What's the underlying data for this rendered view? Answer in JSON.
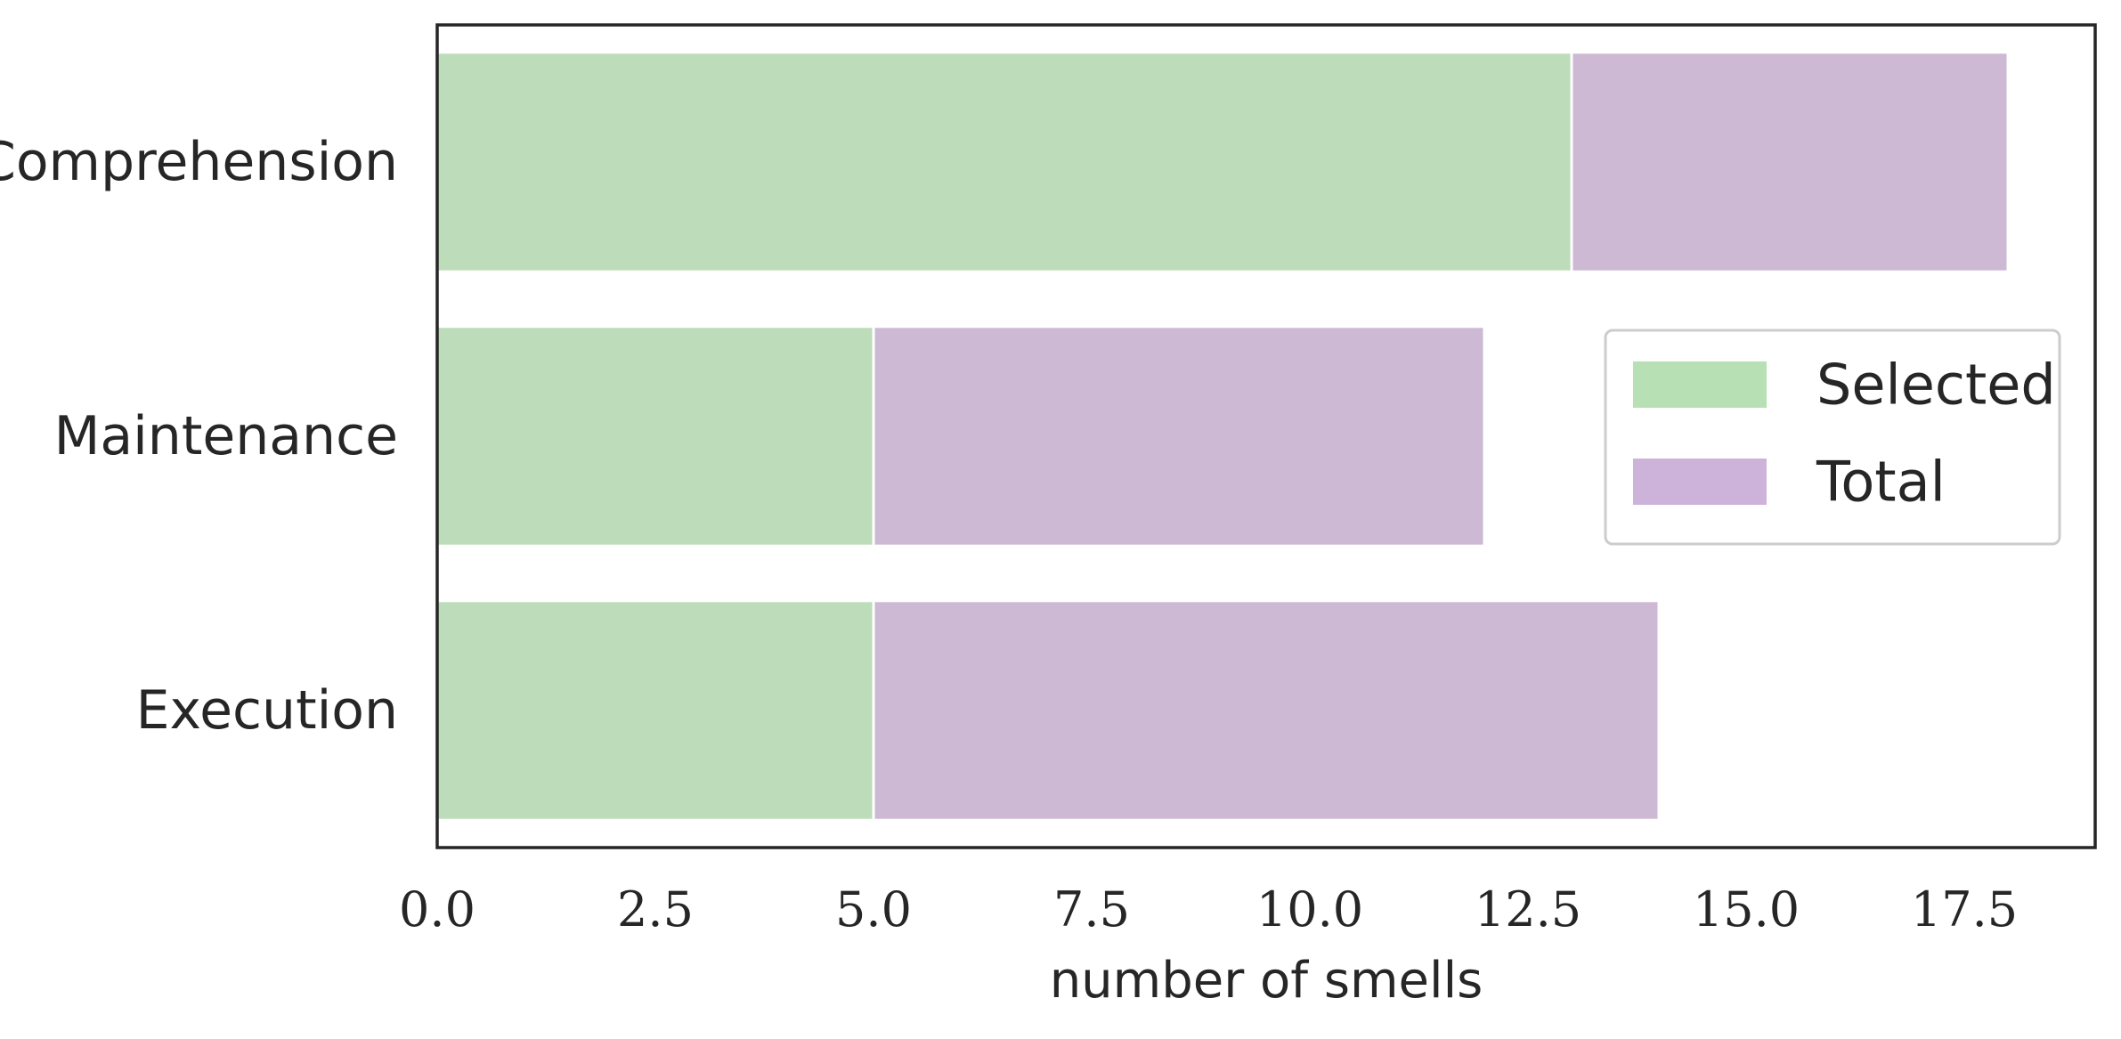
{
  "chart_data": {
    "type": "bar",
    "orientation": "horizontal",
    "stacked": true,
    "categories": [
      "Comprehension",
      "Maintenance",
      "Execution"
    ],
    "series": [
      {
        "name": "Selected",
        "values": [
          13,
          5,
          5
        ],
        "color": "#bddcb9"
      },
      {
        "name": "Total",
        "values": [
          5,
          7,
          9
        ],
        "color": "#cdb9d4"
      }
    ],
    "xlabel": "number of smells",
    "ylabel": "",
    "xlim": [
      0,
      19
    ],
    "xticks": [
      0.0,
      2.5,
      5.0,
      7.5,
      10.0,
      12.5,
      15.0,
      17.5
    ],
    "xtick_labels": [
      "0.0",
      "2.5",
      "5.0",
      "7.5",
      "10.0",
      "12.5",
      "15.0",
      "17.5"
    ],
    "grid": false,
    "legend_position": "right",
    "legend_colors": [
      "#b7e1b4",
      "#cdb3da"
    ]
  }
}
